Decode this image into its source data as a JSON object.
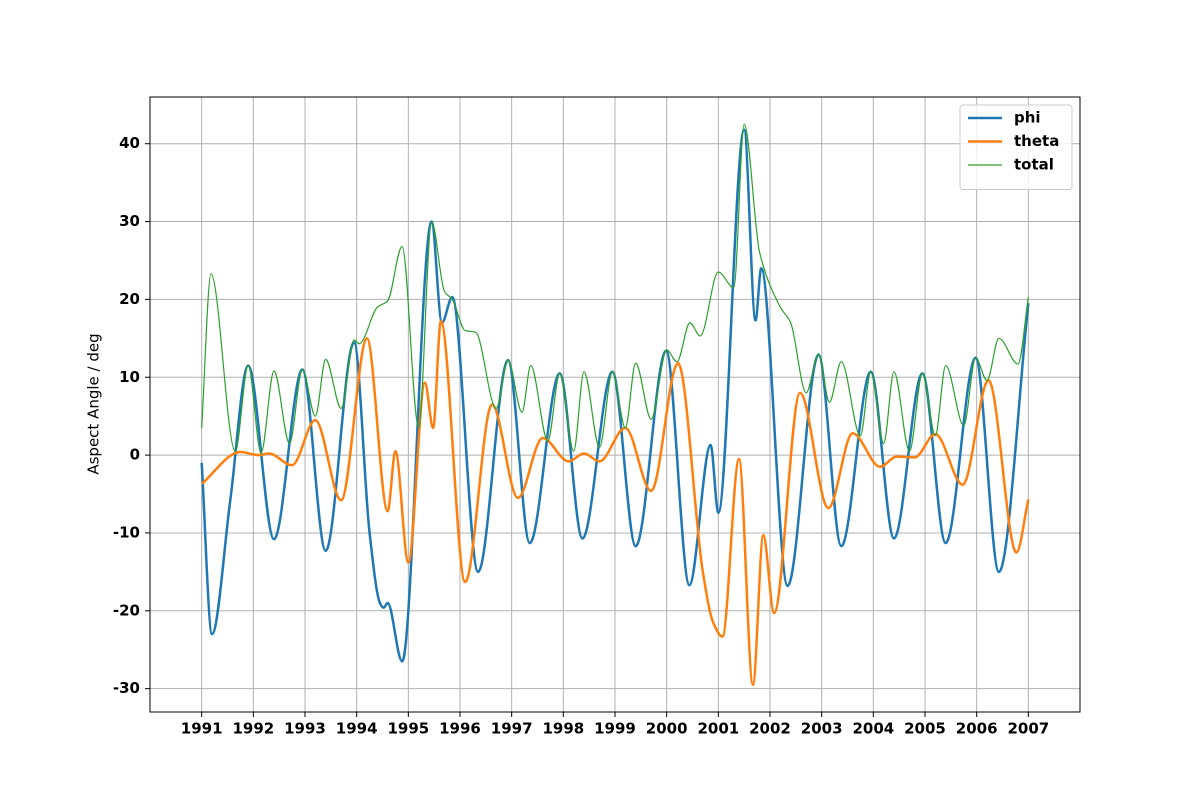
{
  "chart_data": {
    "type": "line",
    "ylabel": "Aspect Angle / deg",
    "xlim": [
      1990,
      2008
    ],
    "xticks": [
      1991,
      1992,
      1993,
      1994,
      1995,
      1996,
      1997,
      1998,
      1999,
      2000,
      2001,
      2002,
      2003,
      2004,
      2005,
      2006,
      2007
    ],
    "ylim": [
      -33,
      46
    ],
    "yticks": [
      -30,
      -20,
      -10,
      0,
      10,
      20,
      30,
      40
    ],
    "grid": true,
    "legend": "upper right",
    "series": [
      {
        "name": "phi",
        "color": "#1f77b4",
        "linewidth": 2.5,
        "x": [
          1991,
          1991.2,
          1991.55,
          1991.9,
          1992.4,
          1992.95,
          1993.4,
          1993.95,
          1994.25,
          1994.45,
          1994.52,
          1994.6,
          1994.88,
          1995.45,
          1995.65,
          1995.85,
          1996.35,
          1996.93,
          1997.35,
          1997.93,
          1998.37,
          1998.95,
          1999.4,
          1999.99,
          2000.44,
          2000.85,
          2001.0,
          2001.5,
          2001.72,
          2001.83,
          2002.34,
          2002.94,
          2003.38,
          2003.95,
          2004.4,
          2004.95,
          2005.4,
          2005.98,
          2006.43,
          2007
        ],
        "values": [
          -1,
          -23,
          -6,
          11.5,
          -10.8,
          11,
          -12.3,
          14.5,
          -10,
          -19,
          -19.6,
          -19,
          -26.5,
          30,
          17,
          20.3,
          -15,
          12.2,
          -11.3,
          10.5,
          -10.7,
          10.7,
          -11.7,
          13.4,
          -16.7,
          1.3,
          -7.4,
          41.8,
          17.3,
          24,
          -16.8,
          12.9,
          -11.7,
          10.7,
          -10.7,
          10.5,
          -11.3,
          12.5,
          -15,
          19.5
        ]
      },
      {
        "name": "theta",
        "color": "#ff7f0e",
        "linewidth": 2.5,
        "x": [
          1991,
          1991.75,
          1992.1,
          1992.3,
          1992.75,
          1993.2,
          1993.7,
          1994.2,
          1994.6,
          1994.75,
          1995.0,
          1995.32,
          1995.48,
          1995.63,
          1996.1,
          1996.62,
          1997.12,
          1997.6,
          1998.1,
          1998.4,
          1998.7,
          1999.2,
          1999.7,
          2000.22,
          2000.7,
          2000.9,
          2001.08,
          2001.4,
          2001.67,
          2001.87,
          2002.08,
          2002.58,
          2003.13,
          2003.6,
          2004.13,
          2004.45,
          2004.8,
          2005.2,
          2005.73,
          2006.23,
          2006.77,
          2007
        ],
        "values": [
          -3.7,
          0.4,
          0,
          0.2,
          -1.3,
          4.5,
          -5.8,
          15,
          -7.2,
          0.5,
          -13.8,
          9.3,
          3.5,
          17.2,
          -16.3,
          6.5,
          -5.5,
          2.2,
          -0.8,
          0.2,
          -0.8,
          3.5,
          -4.6,
          11.8,
          -15,
          -21.5,
          -23.3,
          -0.5,
          -29.5,
          -10.3,
          -20.3,
          8,
          -6.8,
          2.8,
          -1.5,
          -0.2,
          -0.3,
          2.7,
          -3.8,
          9.6,
          -12.5,
          -5.7
        ]
      },
      {
        "name": "total",
        "color": "#2ca02c",
        "linewidth": 1.2,
        "x": [
          1991,
          1991.18,
          1991.65,
          1991.9,
          1992.15,
          1992.4,
          1992.7,
          1992.95,
          1993.2,
          1993.4,
          1993.7,
          1993.95,
          1994.05,
          1994.4,
          1994.6,
          1994.88,
          1995.2,
          1995.45,
          1995.7,
          1995.85,
          1996.1,
          1996.3,
          1996.7,
          1996.93,
          1997.2,
          1997.37,
          1997.7,
          1997.93,
          1998.2,
          1998.4,
          1998.7,
          1998.95,
          1999.2,
          1999.4,
          1999.7,
          2000.0,
          2000.2,
          2000.45,
          2000.65,
          2001.0,
          2001.3,
          2001.5,
          2001.8,
          2002.2,
          2002.4,
          2002.7,
          2002.94,
          2003.15,
          2003.38,
          2003.75,
          2003.95,
          2004.2,
          2004.4,
          2004.7,
          2004.95,
          2005.2,
          2005.4,
          2005.75,
          2005.98,
          2006.2,
          2006.43,
          2006.8,
          2007
        ],
        "values": [
          3.5,
          23.3,
          0.5,
          11.5,
          0.3,
          10.8,
          1.5,
          11,
          5,
          12.3,
          6,
          14.8,
          14.3,
          19,
          19.8,
          26.8,
          3.5,
          30,
          21,
          20,
          16,
          15.8,
          6,
          12.2,
          5.5,
          11.5,
          1.8,
          10.5,
          0.5,
          10.7,
          1,
          10.7,
          3.5,
          11.8,
          4.6,
          13.5,
          12,
          17,
          15.3,
          23.5,
          21.5,
          42.5,
          26,
          19,
          17,
          8,
          13,
          6.8,
          12,
          2.5,
          10.7,
          1.5,
          10.7,
          0.5,
          10.5,
          2.5,
          11.5,
          3.8,
          12.5,
          9.6,
          15,
          11.7,
          20.3
        ]
      }
    ]
  }
}
